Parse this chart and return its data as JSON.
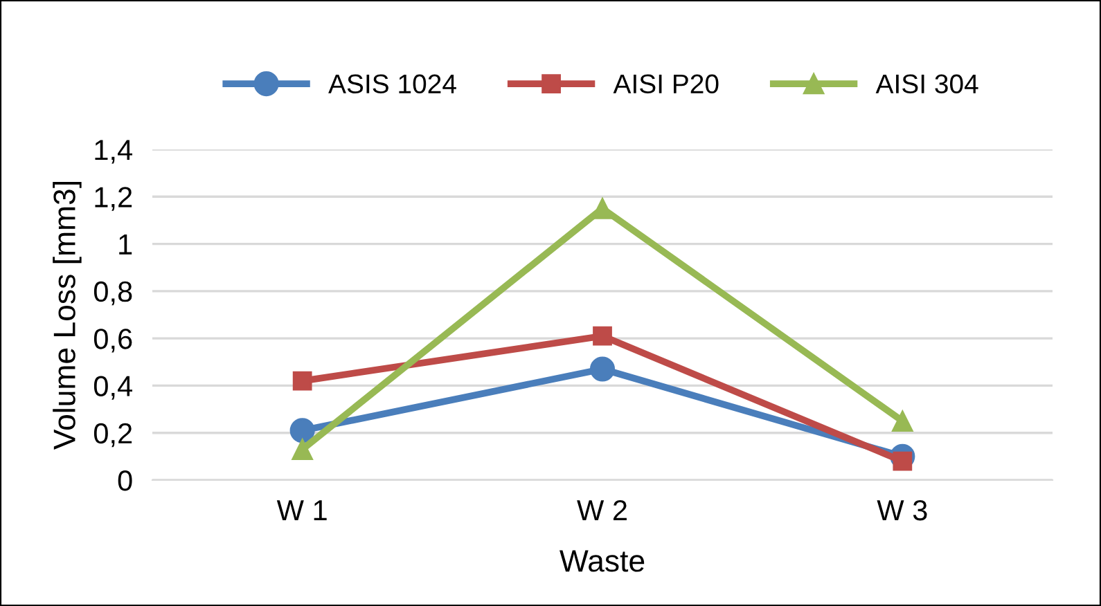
{
  "chart_data": {
    "type": "line",
    "xlabel": "Waste",
    "ylabel": "Volume Loss [mm3]",
    "categories": [
      "W 1",
      "W 2",
      "W 3"
    ],
    "series": [
      {
        "name": "ASIS 1024",
        "color": "#4a7ebb",
        "marker": "circle",
        "values": [
          0.21,
          0.47,
          0.1
        ]
      },
      {
        "name": "AISI P20",
        "color": "#be4b48",
        "marker": "square",
        "values": [
          0.42,
          0.61,
          0.08
        ]
      },
      {
        "name": "AISI 304",
        "color": "#98b954",
        "marker": "triangle",
        "values": [
          0.13,
          1.15,
          0.25
        ]
      }
    ],
    "ylim": [
      0,
      1.4
    ],
    "yticks": [
      0,
      {
        "value": 0.2,
        "label": "0,2"
      },
      {
        "value": 0.4,
        "label": "0,4"
      },
      {
        "value": 0.6,
        "label": "0,6"
      },
      {
        "value": 0.8,
        "label": "0,8"
      },
      1,
      {
        "value": 1.2,
        "label": "1,2"
      },
      {
        "value": 1.4,
        "label": "1,4"
      }
    ],
    "grid": "y",
    "legend": "top",
    "line_style": "solid"
  }
}
